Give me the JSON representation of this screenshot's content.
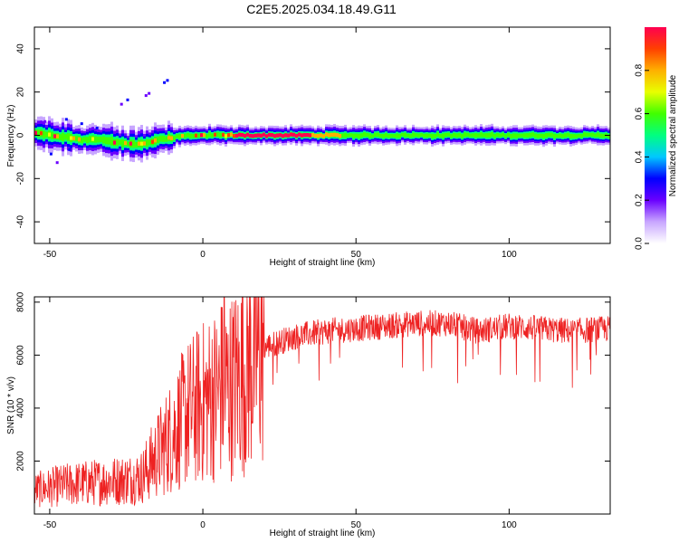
{
  "title": "C2E5.2025.034.18.49.G11",
  "chart_data": [
    {
      "type": "heatmap",
      "xlabel": "Height of straight line (km)",
      "ylabel": "Frequency (Hz)",
      "xlim": [
        -55,
        133
      ],
      "ylim": [
        -50,
        50
      ],
      "xticks": [
        -50,
        0,
        50,
        100
      ],
      "yticks": [
        -40,
        -20,
        0,
        20,
        40
      ],
      "colorbar": {
        "label": "Normalized spectral amplitude",
        "range": [
          0,
          1
        ],
        "ticks": [
          0.0,
          0.2,
          0.4,
          0.6,
          0.8
        ],
        "colors": [
          "#ffffff",
          "#c8a6ff",
          "#6a00ff",
          "#0000ff",
          "#00c8ff",
          "#00ff80",
          "#40ff00",
          "#e8ff00",
          "#ffb000",
          "#ff4000",
          "#ff0050"
        ]
      },
      "ridge": {
        "x": [
          -55,
          -50,
          -45,
          -40,
          -35,
          -30,
          -25,
          -20,
          -15,
          -10,
          -5,
          0,
          10,
          20,
          30,
          40,
          60,
          80,
          100,
          120,
          133
        ],
        "freq": [
          1,
          0,
          -1,
          -2,
          -2,
          -3,
          -4,
          -4,
          -2,
          -1,
          0,
          0,
          0,
          0,
          0,
          0,
          0,
          0,
          0,
          0,
          0
        ]
      }
    },
    {
      "type": "line",
      "xlabel": "Height of straight line (km)",
      "ylabel": "SNR (10 * v/v)",
      "xlim": [
        -55,
        133
      ],
      "ylim": [
        0,
        8200
      ],
      "xticks": [
        -50,
        0,
        50,
        100
      ],
      "yticks": [
        2000,
        4000,
        6000,
        8000
      ],
      "color": "#ee2222",
      "envelope": {
        "x": [
          -55,
          -45,
          -35,
          -25,
          -20,
          -15,
          -10,
          -5,
          0,
          5,
          10,
          15,
          20,
          25,
          30,
          40,
          50,
          60,
          70,
          80,
          90,
          100,
          110,
          120,
          133
        ],
        "y": [
          900,
          1100,
          1200,
          1300,
          1400,
          2200,
          3000,
          3800,
          4200,
          4600,
          4900,
          5700,
          6300,
          6500,
          6700,
          6900,
          7000,
          7100,
          7200,
          7200,
          6900,
          7100,
          7000,
          6900,
          7000
        ]
      },
      "spikes": [
        {
          "x": 7,
          "y": 8200
        },
        {
          "x": 6,
          "y": 7800
        }
      ]
    }
  ]
}
